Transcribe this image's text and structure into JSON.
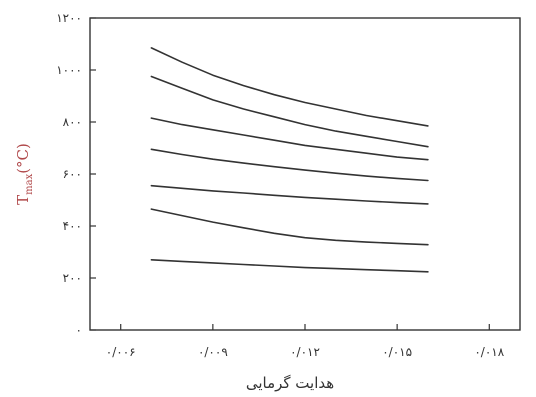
{
  "chart_data": {
    "type": "line",
    "title": "",
    "xlabel": "هدایت گرمایی",
    "ylabel": {
      "main": "T",
      "sub": "max",
      "unit": "(°C)"
    },
    "xlim": [
      0.005,
      0.019
    ],
    "ylim": [
      0,
      1200
    ],
    "grid": false,
    "x_ticks": [
      {
        "value": 0.006,
        "label": "۰/۰۰۶"
      },
      {
        "value": 0.009,
        "label": "۰/۰۰۹"
      },
      {
        "value": 0.012,
        "label": "۰/۰۱۲"
      },
      {
        "value": 0.015,
        "label": "۰/۰۱۵"
      },
      {
        "value": 0.018,
        "label": "۰/۰۱۸"
      }
    ],
    "y_ticks": [
      {
        "value": 0,
        "label": "۰"
      },
      {
        "value": 200,
        "label": "۲۰۰"
      },
      {
        "value": 400,
        "label": "۴۰۰"
      },
      {
        "value": 600,
        "label": "۶۰۰"
      },
      {
        "value": 800,
        "label": "۸۰۰"
      },
      {
        "value": 1000,
        "label": "۱۰۰۰"
      },
      {
        "value": 1200,
        "label": "۱۲۰۰"
      }
    ],
    "x": [
      0.007,
      0.008,
      0.009,
      0.01,
      0.011,
      0.012,
      0.013,
      0.014,
      0.015,
      0.016
    ],
    "series": [
      {
        "values": [
          1085,
          1030,
          980,
          940,
          905,
          875,
          850,
          825,
          805,
          785
        ]
      },
      {
        "values": [
          975,
          930,
          885,
          850,
          820,
          790,
          765,
          745,
          725,
          705
        ]
      },
      {
        "values": [
          815,
          790,
          770,
          750,
          730,
          710,
          695,
          680,
          665,
          655
        ]
      },
      {
        "values": [
          695,
          675,
          657,
          642,
          628,
          615,
          603,
          592,
          583,
          575
        ]
      },
      {
        "values": [
          555,
          545,
          535,
          527,
          518,
          510,
          503,
          496,
          490,
          485
        ]
      },
      {
        "values": [
          465,
          440,
          415,
          393,
          372,
          355,
          345,
          338,
          333,
          328
        ]
      },
      {
        "values": [
          270,
          264,
          258,
          252,
          246,
          240,
          236,
          232,
          228,
          224
        ]
      }
    ]
  }
}
